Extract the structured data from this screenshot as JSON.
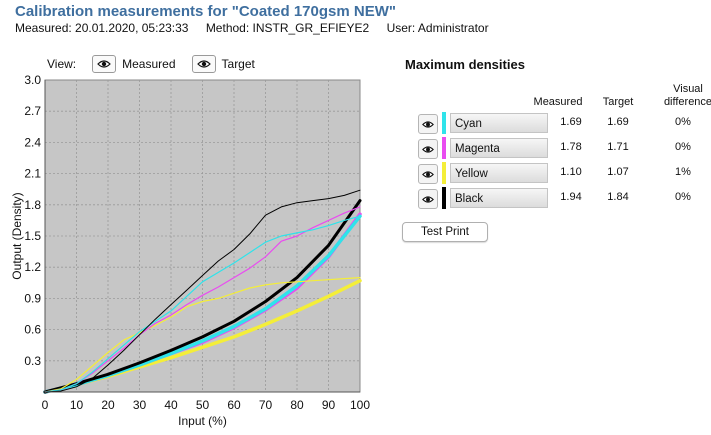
{
  "header": {
    "title": "Calibration measurements for \"Coated 170gsm NEW\"",
    "measured": "Measured: 20.01.2020, 05:23:33",
    "method": "Method: INSTR_GR_EFIEYE2",
    "user": "User: Administrator"
  },
  "view": {
    "label": "View:",
    "measured_label": "Measured",
    "target_label": "Target",
    "icon": "eye-icon"
  },
  "max_densities": {
    "title": "Maximum densities",
    "col_measured": "Measured",
    "col_target": "Target",
    "col_visual_1": "Visual",
    "col_visual_2": "difference",
    "rows": [
      {
        "name": "Cyan",
        "color": "#2fe3ea",
        "measured": "1.69",
        "target": "1.69",
        "diff": "0%"
      },
      {
        "name": "Magenta",
        "color": "#e94cf0",
        "measured": "1.78",
        "target": "1.71",
        "diff": "0%"
      },
      {
        "name": "Yellow",
        "color": "#f4ee38",
        "measured": "1.10",
        "target": "1.07",
        "diff": "1%"
      },
      {
        "name": "Black",
        "color": "#000000",
        "measured": "1.94",
        "target": "1.84",
        "diff": "0%"
      }
    ],
    "test_print_label": "Test Print"
  },
  "chart_data": {
    "type": "line",
    "xlabel": "Input (%)",
    "ylabel": "Output (Density)",
    "xlim": [
      0,
      100
    ],
    "ylim": [
      0,
      3.0
    ],
    "xticks": [
      0,
      10,
      20,
      30,
      40,
      50,
      60,
      70,
      80,
      90,
      100
    ],
    "yticks": [
      "0.3",
      "0.6",
      "0.9",
      "1.2",
      "1.5",
      "1.8",
      "2.1",
      "2.4",
      "2.7",
      "3.0"
    ],
    "grid": true,
    "series": [
      {
        "color": "#f4ee38",
        "width": 3.5,
        "x": [
          0,
          10,
          20,
          30,
          40,
          50,
          60,
          70,
          80,
          90,
          100
        ],
        "y": [
          0,
          0.07,
          0.15,
          0.24,
          0.33,
          0.43,
          0.53,
          0.65,
          0.78,
          0.92,
          1.07
        ]
      },
      {
        "color": "#e94cf0",
        "width": 3.5,
        "x": [
          0,
          10,
          20,
          30,
          40,
          50,
          60,
          70,
          80,
          90,
          100
        ],
        "y": [
          0,
          0.07,
          0.16,
          0.26,
          0.37,
          0.48,
          0.62,
          0.79,
          1.0,
          1.3,
          1.71
        ]
      },
      {
        "color": "#2fe3ea",
        "width": 3.5,
        "x": [
          0,
          10,
          20,
          30,
          40,
          50,
          60,
          70,
          80,
          90,
          100
        ],
        "y": [
          0,
          0.07,
          0.16,
          0.26,
          0.37,
          0.49,
          0.63,
          0.8,
          1.02,
          1.31,
          1.69
        ]
      },
      {
        "color": "#000000",
        "width": 3,
        "x": [
          0,
          10,
          20,
          30,
          40,
          50,
          60,
          70,
          80,
          90,
          100
        ],
        "y": [
          0,
          0.08,
          0.17,
          0.28,
          0.4,
          0.53,
          0.68,
          0.87,
          1.1,
          1.41,
          1.84
        ]
      },
      {
        "color": "#f4ee38",
        "width": 1.2,
        "x": [
          0,
          5,
          10,
          15,
          20,
          25,
          30,
          35,
          40,
          45,
          50,
          55,
          60,
          65,
          70,
          75,
          80,
          85,
          90,
          95,
          100
        ],
        "y": [
          0,
          0.03,
          0.12,
          0.25,
          0.38,
          0.5,
          0.57,
          0.64,
          0.72,
          0.82,
          0.87,
          0.9,
          0.95,
          1.0,
          1.03,
          1.05,
          1.06,
          1.07,
          1.08,
          1.09,
          1.1
        ]
      },
      {
        "color": "#e94cf0",
        "width": 1.2,
        "x": [
          0,
          5,
          10,
          15,
          20,
          25,
          30,
          35,
          40,
          45,
          50,
          55,
          60,
          65,
          70,
          75,
          80,
          85,
          90,
          95,
          100
        ],
        "y": [
          0,
          0.02,
          0.08,
          0.18,
          0.3,
          0.42,
          0.55,
          0.66,
          0.74,
          0.84,
          0.93,
          1.01,
          1.1,
          1.19,
          1.3,
          1.45,
          1.5,
          1.58,
          1.65,
          1.72,
          1.78
        ]
      },
      {
        "color": "#2fe3ea",
        "width": 1.2,
        "x": [
          0,
          5,
          10,
          15,
          20,
          25,
          30,
          35,
          40,
          45,
          50,
          55,
          60,
          65,
          70,
          75,
          80,
          85,
          90,
          95,
          100
        ],
        "y": [
          0,
          0.02,
          0.08,
          0.19,
          0.32,
          0.45,
          0.58,
          0.68,
          0.78,
          0.92,
          1.06,
          1.15,
          1.24,
          1.34,
          1.44,
          1.5,
          1.53,
          1.56,
          1.6,
          1.65,
          1.69
        ]
      },
      {
        "color": "#000000",
        "width": 1,
        "x": [
          0,
          5,
          10,
          15,
          20,
          25,
          30,
          35,
          40,
          45,
          50,
          55,
          60,
          65,
          70,
          75,
          80,
          85,
          90,
          95,
          100
        ],
        "y": [
          0,
          0.01,
          0.05,
          0.13,
          0.26,
          0.4,
          0.55,
          0.7,
          0.84,
          0.98,
          1.12,
          1.26,
          1.37,
          1.52,
          1.7,
          1.78,
          1.82,
          1.84,
          1.86,
          1.89,
          1.94
        ]
      }
    ]
  }
}
